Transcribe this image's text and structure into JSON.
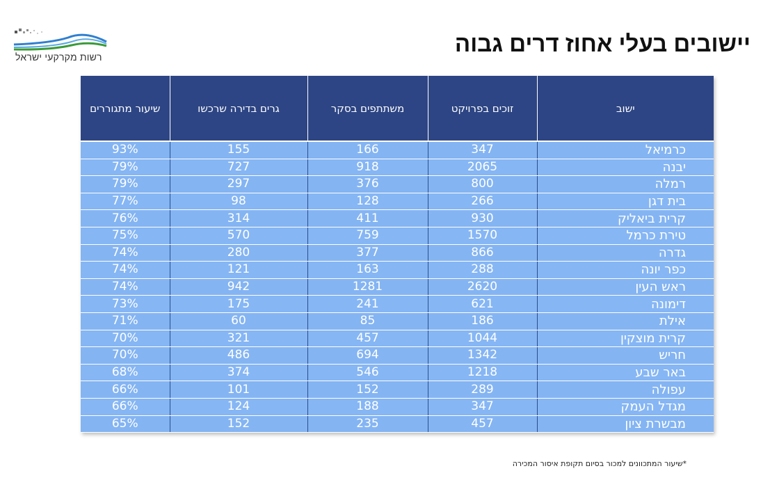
{
  "logo": {
    "text": "רשות מקרקעי ישראל"
  },
  "title": "יישובים בעלי אחוז דרים גבוה",
  "table": {
    "headers": [
      "ישוב",
      "זוכים בפרויקט",
      "משתתפים בסקר",
      "גרים בדירה שרכשו",
      "שיעור מתגוררים"
    ],
    "rows": [
      [
        "כרמיאל",
        "347",
        "166",
        "155",
        "93%"
      ],
      [
        "יבנה",
        "2065",
        "918",
        "727",
        "79%"
      ],
      [
        "רמלה",
        "800",
        "376",
        "297",
        "79%"
      ],
      [
        "בית דגן",
        "266",
        "128",
        "98",
        "77%"
      ],
      [
        "קרית ביאליק",
        "930",
        "411",
        "314",
        "76%"
      ],
      [
        "טירת כרמל",
        "1570",
        "759",
        "570",
        "75%"
      ],
      [
        "גדרה",
        "866",
        "377",
        "280",
        "74%"
      ],
      [
        "כפר יונה",
        "288",
        "163",
        "121",
        "74%"
      ],
      [
        "ראש העין",
        "2620",
        "1281",
        "942",
        "74%"
      ],
      [
        "דימונה",
        "621",
        "241",
        "175",
        "73%"
      ],
      [
        "אילת",
        "186",
        "85",
        "60",
        "71%"
      ],
      [
        "קרית מוצקין",
        "1044",
        "457",
        "321",
        "70%"
      ],
      [
        "חריש",
        "1342",
        "694",
        "486",
        "70%"
      ],
      [
        "באר שבע",
        "1218",
        "546",
        "374",
        "68%"
      ],
      [
        "עפולה",
        "289",
        "152",
        "101",
        "66%"
      ],
      [
        "מגדל העמק",
        "347",
        "188",
        "124",
        "66%"
      ],
      [
        "מבשרת ציון",
        "457",
        "235",
        "152",
        "65%"
      ]
    ]
  },
  "footnote": "*שיעור המתכוונים למכור בסיום תקופת איסור המכירה",
  "colors": {
    "header_bg": "#2d4584",
    "row_bg": "#84b4f2",
    "logo_blue": "#2f7fd0",
    "logo_green": "#3a9a3a"
  }
}
